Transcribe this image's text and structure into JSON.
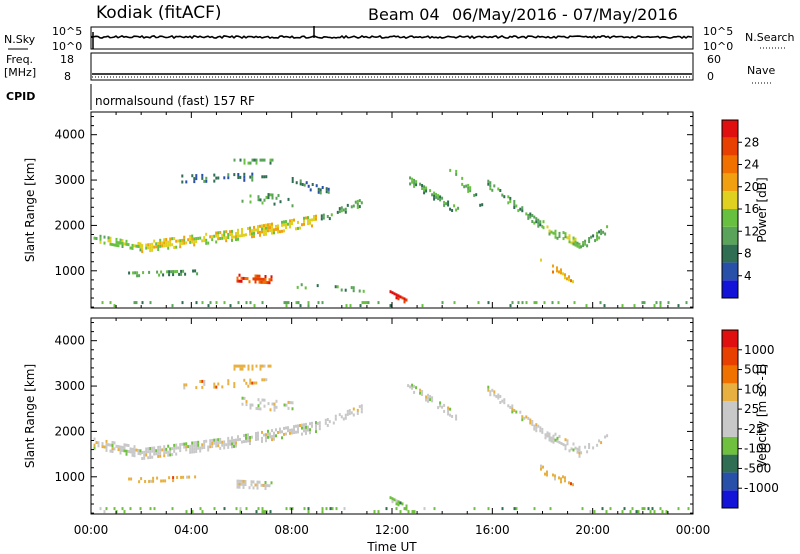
{
  "header": {
    "radar": "Kodiak (fitACF)",
    "beam": "Beam 04",
    "date_range": "06/May/2016 - 07/May/2016"
  },
  "panels": {
    "nsky": {
      "label": "N.Sky",
      "tick_top": "10^5",
      "tick_bottom": "10^0",
      "right_label": "N.Search",
      "right_tick_top": "10^5",
      "right_tick_bottom": "10^0"
    },
    "freq": {
      "label_line1": "Freq.",
      "label_line2": "[MHz]",
      "tick_top": "18",
      "tick_bottom": "8",
      "right_label": "Nave",
      "right_tick_top": "60",
      "right_tick_bottom": "0"
    },
    "cpid": {
      "label": "CPID",
      "text": "normalsound (fast) 157 RF"
    }
  },
  "colorbars": {
    "power": {
      "label": "Power [dB]",
      "ticks": [
        "28",
        "24",
        "20",
        "16",
        "12",
        "8",
        "4"
      ],
      "colors": [
        "#1414d8",
        "#2850a8",
        "#2f6e52",
        "#5aa35a",
        "#68c040",
        "#e0d020",
        "#f0a010",
        "#f07000",
        "#e84000",
        "#e01010"
      ]
    },
    "velocity": {
      "label": "Velocity [m s^-1]",
      "ticks": [
        "1000",
        "500",
        "100",
        "25",
        "-25",
        "-100",
        "-500",
        "-1000"
      ],
      "colors": [
        "#1414d8",
        "#2850a8",
        "#2f6e52",
        "#70c040",
        "#c8c8c8",
        "#c8c8c8",
        "#e8b040",
        "#f07000",
        "#e84000",
        "#e01010"
      ]
    }
  },
  "chart_data": [
    {
      "type": "heatmap",
      "title": "Power",
      "ylabel": "Slant Range [km]",
      "xlabel": "Time UT",
      "x_ticks": [
        "00:00",
        "04:00",
        "08:00",
        "12:00",
        "16:00",
        "20:00",
        "00:00"
      ],
      "y_ticks": [
        1000,
        2000,
        3000,
        4000
      ],
      "xlim": [
        0,
        24
      ],
      "ylim": [
        180,
        4500
      ],
      "regions": [
        {
          "t0": 0.1,
          "t1": 2.0,
          "r_start": 1700,
          "r_end": 1500,
          "width": 160,
          "density": 0.8,
          "level": 4
        },
        {
          "t0": 2.0,
          "t1": 5.5,
          "r_start": 1500,
          "r_end": 1750,
          "width": 220,
          "density": 0.9,
          "level": 5
        },
        {
          "t0": 5.5,
          "t1": 9.0,
          "r_start": 1750,
          "r_end": 2100,
          "width": 240,
          "density": 0.85,
          "level": 5
        },
        {
          "t0": 9.0,
          "t1": 10.8,
          "r_start": 2100,
          "r_end": 2500,
          "width": 180,
          "density": 0.6,
          "level": 3
        },
        {
          "t0": 3.6,
          "t1": 7.0,
          "r_start": 3000,
          "r_end": 3050,
          "width": 150,
          "density": 0.35,
          "level": 2
        },
        {
          "t0": 5.6,
          "t1": 7.2,
          "r_start": 3400,
          "r_end": 3400,
          "width": 120,
          "density": 0.6,
          "level": 3
        },
        {
          "t0": 6.0,
          "t1": 8.0,
          "r_start": 2600,
          "r_end": 2500,
          "width": 200,
          "density": 0.35,
          "level": 3
        },
        {
          "t0": 8.0,
          "t1": 9.5,
          "r_start": 2950,
          "r_end": 2700,
          "width": 160,
          "density": 0.35,
          "level": 2
        },
        {
          "t0": 1.4,
          "t1": 4.2,
          "r_start": 900,
          "r_end": 950,
          "width": 100,
          "density": 0.5,
          "level": 3
        },
        {
          "t0": 5.8,
          "t1": 7.2,
          "r_start": 820,
          "r_end": 780,
          "width": 160,
          "density": 0.95,
          "level": 8
        },
        {
          "t0": 8.2,
          "t1": 11.0,
          "r_start": 650,
          "r_end": 560,
          "width": 100,
          "density": 0.4,
          "level": 3
        },
        {
          "t0": 11.9,
          "t1": 12.6,
          "r_start": 500,
          "r_end": 300,
          "width": 120,
          "density": 0.95,
          "level": 9
        },
        {
          "t0": 12.6,
          "t1": 14.6,
          "r_start": 3000,
          "r_end": 2300,
          "width": 180,
          "density": 0.6,
          "level": 3
        },
        {
          "t0": 14.2,
          "t1": 15.6,
          "r_start": 3300,
          "r_end": 2400,
          "width": 140,
          "density": 0.45,
          "level": 3
        },
        {
          "t0": 15.8,
          "t1": 18.0,
          "r_start": 2900,
          "r_end": 1950,
          "width": 180,
          "density": 0.65,
          "level": 3
        },
        {
          "t0": 18.0,
          "t1": 19.5,
          "r_start": 1950,
          "r_end": 1500,
          "width": 200,
          "density": 0.7,
          "level": 4
        },
        {
          "t0": 19.5,
          "t1": 20.6,
          "r_start": 1500,
          "r_end": 1900,
          "width": 140,
          "density": 0.5,
          "level": 3
        },
        {
          "t0": 17.9,
          "t1": 19.2,
          "r_start": 1150,
          "r_end": 800,
          "width": 160,
          "density": 0.5,
          "level": 6
        },
        {
          "t0": 0.1,
          "t1": 23.8,
          "r_start": 260,
          "r_end": 260,
          "width": 120,
          "density": 0.18,
          "level": 3
        }
      ]
    },
    {
      "type": "heatmap",
      "title": "Velocity",
      "ylabel": "Slant Range [km]",
      "xlabel": "Time UT",
      "x_ticks": [
        "00:00",
        "04:00",
        "08:00",
        "12:00",
        "16:00",
        "20:00",
        "00:00"
      ],
      "y_ticks": [
        1000,
        2000,
        3000,
        4000
      ],
      "xlim": [
        0,
        24
      ],
      "ylim": [
        180,
        4500
      ],
      "regions": [
        {
          "t0": 0.1,
          "t1": 2.0,
          "r_start": 1700,
          "r_end": 1500,
          "width": 200,
          "density": 0.85,
          "level": 4
        },
        {
          "t0": 2.0,
          "t1": 5.5,
          "r_start": 1500,
          "r_end": 1750,
          "width": 260,
          "density": 0.9,
          "level": 4
        },
        {
          "t0": 5.5,
          "t1": 9.0,
          "r_start": 1750,
          "r_end": 2100,
          "width": 260,
          "density": 0.85,
          "level": 4
        },
        {
          "t0": 9.0,
          "t1": 10.8,
          "r_start": 2100,
          "r_end": 2500,
          "width": 180,
          "density": 0.6,
          "level": 4
        },
        {
          "t0": 3.6,
          "t1": 7.0,
          "r_start": 3000,
          "r_end": 3050,
          "width": 150,
          "density": 0.35,
          "level": 6
        },
        {
          "t0": 5.6,
          "t1": 7.2,
          "r_start": 3400,
          "r_end": 3400,
          "width": 120,
          "density": 0.6,
          "level": 6
        },
        {
          "t0": 6.0,
          "t1": 8.0,
          "r_start": 2600,
          "r_end": 2500,
          "width": 200,
          "density": 0.35,
          "level": 4
        },
        {
          "t0": 1.4,
          "t1": 4.2,
          "r_start": 900,
          "r_end": 950,
          "width": 100,
          "density": 0.5,
          "level": 6
        },
        {
          "t0": 5.8,
          "t1": 7.2,
          "r_start": 820,
          "r_end": 780,
          "width": 160,
          "density": 0.9,
          "level": 4
        },
        {
          "t0": 11.9,
          "t1": 12.6,
          "r_start": 500,
          "r_end": 300,
          "width": 120,
          "density": 0.9,
          "level": 3
        },
        {
          "t0": 12.6,
          "t1": 14.6,
          "r_start": 3000,
          "r_end": 2300,
          "width": 180,
          "density": 0.6,
          "level": 4
        },
        {
          "t0": 15.8,
          "t1": 18.0,
          "r_start": 2900,
          "r_end": 1950,
          "width": 180,
          "density": 0.65,
          "level": 4
        },
        {
          "t0": 18.0,
          "t1": 19.5,
          "r_start": 1950,
          "r_end": 1500,
          "width": 200,
          "density": 0.7,
          "level": 4
        },
        {
          "t0": 19.5,
          "t1": 20.6,
          "r_start": 1500,
          "r_end": 1900,
          "width": 140,
          "density": 0.5,
          "level": 4
        },
        {
          "t0": 17.9,
          "t1": 19.2,
          "r_start": 1150,
          "r_end": 800,
          "width": 160,
          "density": 0.5,
          "level": 6
        },
        {
          "t0": 0.1,
          "t1": 23.8,
          "r_start": 260,
          "r_end": 260,
          "width": 120,
          "density": 0.18,
          "level": 3
        }
      ]
    }
  ]
}
